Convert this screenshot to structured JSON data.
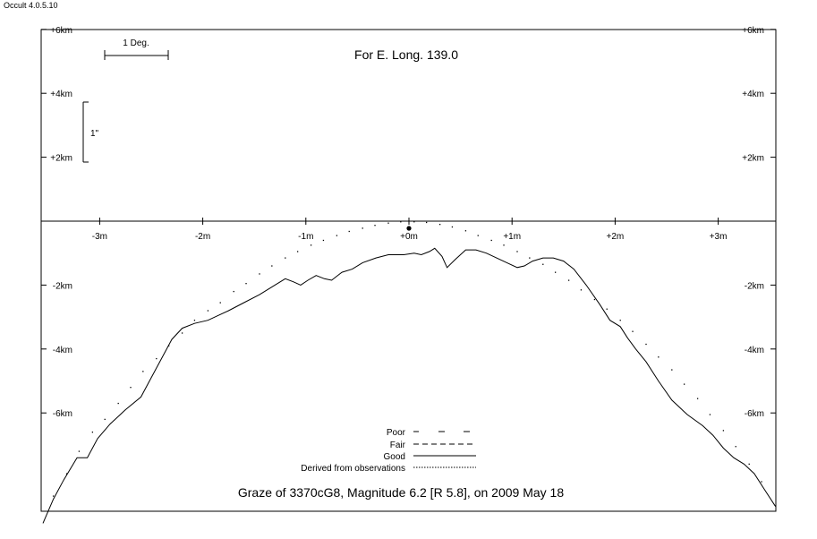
{
  "app": {
    "title": "Occult 4.0.5.10"
  },
  "chart_data": {
    "type": "line",
    "title": "Graze of  3370cG8,  Magnitude 6.2 [R 5.8],  on 2009 May 18",
    "subtitle": "For E. Long. 139.0",
    "xlim": [
      -3.55,
      3.6
    ],
    "ylim": [
      -9.0,
      6.0
    ],
    "x_ticks": [
      {
        "v": -3,
        "label": "-3m"
      },
      {
        "v": -2,
        "label": "-2m"
      },
      {
        "v": -1,
        "label": "-1m"
      },
      {
        "v": 0,
        "label": "+0m"
      },
      {
        "v": 1,
        "label": "+1m"
      },
      {
        "v": 2,
        "label": "+2m"
      },
      {
        "v": 3,
        "label": "+3m"
      }
    ],
    "y_ticks_left": [
      {
        "v": 6,
        "label": "+6km"
      },
      {
        "v": 4,
        "label": "+4km"
      },
      {
        "v": 2,
        "label": "+2km"
      },
      {
        "v": -2,
        "label": "-2km"
      },
      {
        "v": -4,
        "label": "-4km"
      },
      {
        "v": -6,
        "label": "-6km"
      }
    ],
    "y_ticks_right": [
      {
        "v": 6,
        "label": "+6km"
      },
      {
        "v": 4,
        "label": "+4km"
      },
      {
        "v": 2,
        "label": "+2km"
      },
      {
        "v": -2,
        "label": "-2km"
      },
      {
        "v": -4,
        "label": "-4km"
      },
      {
        "v": -6,
        "label": "-6km"
      }
    ],
    "scale_bars": {
      "deg_label": "1 Deg.",
      "arcsec_label": "1\""
    },
    "legend": [
      {
        "name": "Poor",
        "style": "poor"
      },
      {
        "name": "Fair",
        "style": "fair"
      },
      {
        "name": "Good",
        "style": "good"
      },
      {
        "name": "Derived from observations",
        "style": "derived"
      }
    ],
    "star_point": {
      "x": 0.0,
      "y": 0.0
    },
    "series": [
      {
        "style": "mean-limb-dotted",
        "points": [
          [
            -3.45,
            -8.6
          ],
          [
            -3.32,
            -7.9
          ],
          [
            -3.2,
            -7.2
          ],
          [
            -3.07,
            -6.6
          ],
          [
            -2.95,
            -6.2
          ],
          [
            -2.82,
            -5.7
          ],
          [
            -2.7,
            -5.2
          ],
          [
            -2.58,
            -4.7
          ],
          [
            -2.45,
            -4.3
          ],
          [
            -2.33,
            -3.9
          ],
          [
            -2.2,
            -3.5
          ],
          [
            -2.08,
            -3.1
          ],
          [
            -1.95,
            -2.8
          ],
          [
            -1.83,
            -2.55
          ],
          [
            -1.7,
            -2.2
          ],
          [
            -1.58,
            -1.95
          ],
          [
            -1.45,
            -1.65
          ],
          [
            -1.33,
            -1.4
          ],
          [
            -1.2,
            -1.15
          ],
          [
            -1.08,
            -0.95
          ],
          [
            -0.95,
            -0.75
          ],
          [
            -0.83,
            -0.6
          ],
          [
            -0.7,
            -0.45
          ],
          [
            -0.58,
            -0.32
          ],
          [
            -0.45,
            -0.22
          ],
          [
            -0.33,
            -0.13
          ],
          [
            -0.2,
            -0.06
          ],
          [
            -0.08,
            -0.02
          ],
          [
            0.05,
            -0.02
          ],
          [
            0.17,
            -0.04
          ],
          [
            0.3,
            -0.1
          ],
          [
            0.42,
            -0.18
          ],
          [
            0.55,
            -0.3
          ],
          [
            0.67,
            -0.45
          ],
          [
            0.8,
            -0.6
          ],
          [
            0.92,
            -0.75
          ],
          [
            1.05,
            -0.95
          ],
          [
            1.17,
            -1.15
          ],
          [
            1.3,
            -1.35
          ],
          [
            1.42,
            -1.6
          ],
          [
            1.55,
            -1.85
          ],
          [
            1.67,
            -2.15
          ],
          [
            1.8,
            -2.45
          ],
          [
            1.92,
            -2.75
          ],
          [
            2.05,
            -3.1
          ],
          [
            2.17,
            -3.45
          ],
          [
            2.3,
            -3.85
          ],
          [
            2.42,
            -4.25
          ],
          [
            2.55,
            -4.65
          ],
          [
            2.67,
            -5.1
          ],
          [
            2.8,
            -5.55
          ],
          [
            2.92,
            -6.05
          ],
          [
            3.05,
            -6.55
          ],
          [
            3.17,
            -7.05
          ],
          [
            3.3,
            -7.6
          ],
          [
            3.42,
            -8.15
          ]
        ]
      },
      {
        "style": "limb-profile-solid",
        "points": [
          [
            -3.55,
            -9.45
          ],
          [
            -3.45,
            -8.7
          ],
          [
            -3.35,
            -8.1
          ],
          [
            -3.22,
            -7.4
          ],
          [
            -3.12,
            -7.4
          ],
          [
            -3.02,
            -6.8
          ],
          [
            -2.9,
            -6.35
          ],
          [
            -2.75,
            -5.9
          ],
          [
            -2.6,
            -5.5
          ],
          [
            -2.5,
            -4.9
          ],
          [
            -2.4,
            -4.3
          ],
          [
            -2.3,
            -3.7
          ],
          [
            -2.2,
            -3.35
          ],
          [
            -2.08,
            -3.2
          ],
          [
            -1.95,
            -3.1
          ],
          [
            -1.85,
            -2.95
          ],
          [
            -1.75,
            -2.8
          ],
          [
            -1.6,
            -2.55
          ],
          [
            -1.45,
            -2.3
          ],
          [
            -1.3,
            -2.0
          ],
          [
            -1.2,
            -1.8
          ],
          [
            -1.12,
            -1.9
          ],
          [
            -1.05,
            -2.0
          ],
          [
            -0.98,
            -1.85
          ],
          [
            -0.9,
            -1.7
          ],
          [
            -0.82,
            -1.8
          ],
          [
            -0.75,
            -1.85
          ],
          [
            -0.65,
            -1.6
          ],
          [
            -0.55,
            -1.5
          ],
          [
            -0.45,
            -1.3
          ],
          [
            -0.32,
            -1.15
          ],
          [
            -0.2,
            -1.05
          ],
          [
            -0.05,
            -1.05
          ],
          [
            0.05,
            -1.0
          ],
          [
            0.12,
            -1.05
          ],
          [
            0.2,
            -0.95
          ],
          [
            0.25,
            -0.85
          ],
          [
            0.32,
            -1.1
          ],
          [
            0.37,
            -1.45
          ],
          [
            0.45,
            -1.2
          ],
          [
            0.55,
            -0.9
          ],
          [
            0.65,
            -0.9
          ],
          [
            0.75,
            -1.0
          ],
          [
            0.85,
            -1.15
          ],
          [
            0.95,
            -1.3
          ],
          [
            1.05,
            -1.45
          ],
          [
            1.12,
            -1.4
          ],
          [
            1.2,
            -1.25
          ],
          [
            1.3,
            -1.15
          ],
          [
            1.4,
            -1.15
          ],
          [
            1.5,
            -1.25
          ],
          [
            1.6,
            -1.5
          ],
          [
            1.72,
            -2.0
          ],
          [
            1.85,
            -2.6
          ],
          [
            1.95,
            -3.1
          ],
          [
            2.05,
            -3.3
          ],
          [
            2.12,
            -3.65
          ],
          [
            2.2,
            -4.0
          ],
          [
            2.3,
            -4.4
          ],
          [
            2.42,
            -5.0
          ],
          [
            2.55,
            -5.6
          ],
          [
            2.7,
            -6.05
          ],
          [
            2.85,
            -6.4
          ],
          [
            2.95,
            -6.7
          ],
          [
            3.05,
            -7.1
          ],
          [
            3.15,
            -7.4
          ],
          [
            3.25,
            -7.6
          ],
          [
            3.35,
            -7.9
          ],
          [
            3.45,
            -8.4
          ],
          [
            3.55,
            -8.9
          ],
          [
            3.6,
            -9.1
          ]
        ]
      }
    ]
  }
}
